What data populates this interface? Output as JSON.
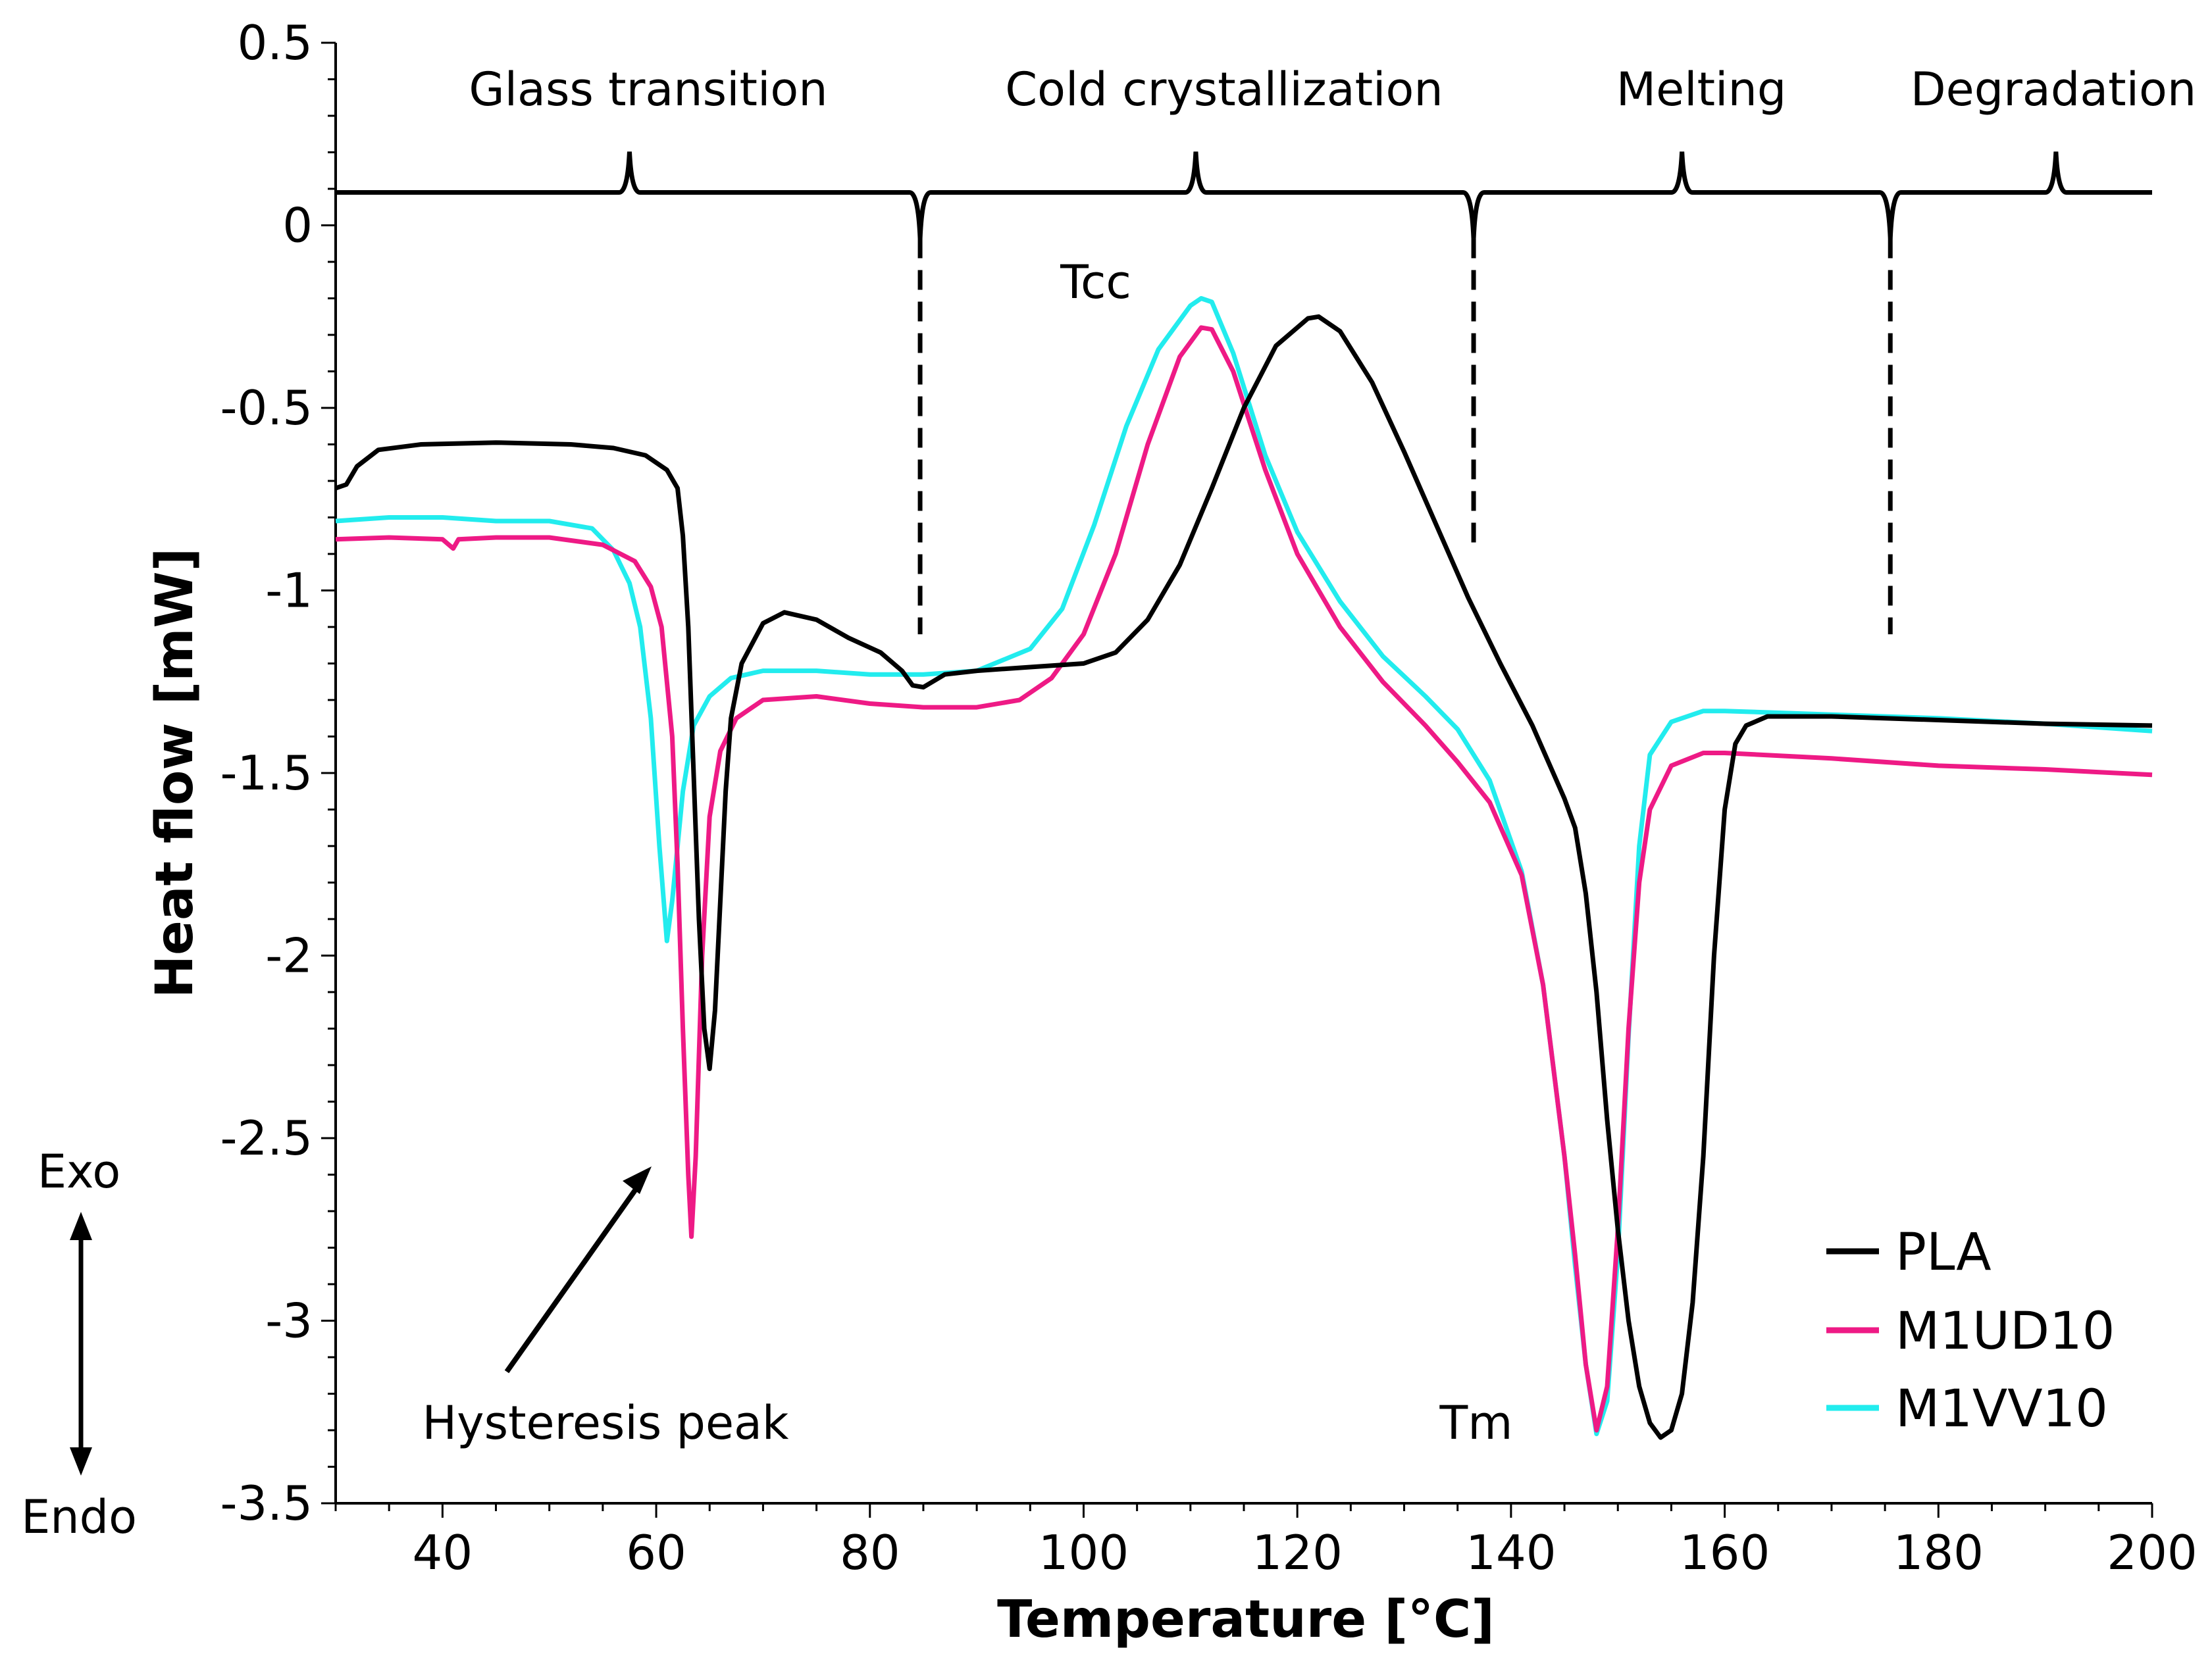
{
  "chart_data": {
    "type": "line",
    "title": "",
    "xlabel": "Temperature [°C]",
    "ylabel": "Heat flow [mW]",
    "xlim": [
      30,
      200
    ],
    "ylim": [
      -3.5,
      0.5
    ],
    "xticks": [
      "40",
      "60",
      "80",
      "100",
      "120",
      "140",
      "160",
      "180",
      "200"
    ],
    "yticks": [
      "0.5",
      "0",
      "-0.5",
      "-1",
      "-1.5",
      "-2",
      "-2.5",
      "-3",
      "-3.5"
    ],
    "legend_position": "bottom-right",
    "series": [
      {
        "name": "PLA",
        "color": "#000000",
        "points": [
          [
            30,
            -0.72
          ],
          [
            31,
            -0.71
          ],
          [
            32,
            -0.66
          ],
          [
            34,
            -0.615
          ],
          [
            38,
            -0.6
          ],
          [
            45,
            -0.595
          ],
          [
            52,
            -0.6
          ],
          [
            56,
            -0.61
          ],
          [
            59,
            -0.63
          ],
          [
            61,
            -0.67
          ],
          [
            62,
            -0.72
          ],
          [
            62.5,
            -0.85
          ],
          [
            63,
            -1.1
          ],
          [
            63.5,
            -1.5
          ],
          [
            64,
            -1.9
          ],
          [
            64.5,
            -2.2
          ],
          [
            65,
            -2.31
          ],
          [
            65.5,
            -2.15
          ],
          [
            66,
            -1.85
          ],
          [
            66.5,
            -1.55
          ],
          [
            67,
            -1.35
          ],
          [
            68,
            -1.2
          ],
          [
            70,
            -1.09
          ],
          [
            72,
            -1.06
          ],
          [
            75,
            -1.08
          ],
          [
            78,
            -1.13
          ],
          [
            81,
            -1.17
          ],
          [
            83,
            -1.22
          ],
          [
            84,
            -1.26
          ],
          [
            85,
            -1.265
          ],
          [
            87,
            -1.23
          ],
          [
            90,
            -1.22
          ],
          [
            95,
            -1.21
          ],
          [
            100,
            -1.2
          ],
          [
            103,
            -1.17
          ],
          [
            106,
            -1.08
          ],
          [
            109,
            -0.93
          ],
          [
            112,
            -0.72
          ],
          [
            115,
            -0.5
          ],
          [
            118,
            -0.33
          ],
          [
            121,
            -0.255
          ],
          [
            122,
            -0.25
          ],
          [
            124,
            -0.29
          ],
          [
            127,
            -0.43
          ],
          [
            130,
            -0.62
          ],
          [
            133,
            -0.82
          ],
          [
            136,
            -1.02
          ],
          [
            139,
            -1.2
          ],
          [
            142,
            -1.37
          ],
          [
            145,
            -1.57
          ],
          [
            146,
            -1.65
          ],
          [
            147,
            -1.83
          ],
          [
            148,
            -2.1
          ],
          [
            149,
            -2.45
          ],
          [
            150,
            -2.75
          ],
          [
            151,
            -3.0
          ],
          [
            152,
            -3.18
          ],
          [
            153,
            -3.28
          ],
          [
            154,
            -3.32
          ],
          [
            155,
            -3.3
          ],
          [
            156,
            -3.2
          ],
          [
            157,
            -2.95
          ],
          [
            158,
            -2.55
          ],
          [
            159,
            -2.0
          ],
          [
            160,
            -1.6
          ],
          [
            161,
            -1.42
          ],
          [
            162,
            -1.37
          ],
          [
            164,
            -1.345
          ],
          [
            170,
            -1.345
          ],
          [
            180,
            -1.355
          ],
          [
            190,
            -1.365
          ],
          [
            200,
            -1.37
          ]
        ]
      },
      {
        "name": "M1UD10",
        "color": "#ee1a85",
        "points": [
          [
            30,
            -0.86
          ],
          [
            35,
            -0.855
          ],
          [
            40,
            -0.86
          ],
          [
            41,
            -0.885
          ],
          [
            41.5,
            -0.86
          ],
          [
            45,
            -0.855
          ],
          [
            50,
            -0.855
          ],
          [
            55,
            -0.875
          ],
          [
            58,
            -0.92
          ],
          [
            59.5,
            -0.99
          ],
          [
            60.5,
            -1.1
          ],
          [
            61.5,
            -1.4
          ],
          [
            62,
            -1.75
          ],
          [
            62.5,
            -2.2
          ],
          [
            63,
            -2.6
          ],
          [
            63.3,
            -2.77
          ],
          [
            63.7,
            -2.55
          ],
          [
            64.3,
            -2.0
          ],
          [
            65,
            -1.62
          ],
          [
            66,
            -1.44
          ],
          [
            67.5,
            -1.35
          ],
          [
            70,
            -1.3
          ],
          [
            75,
            -1.29
          ],
          [
            80,
            -1.31
          ],
          [
            85,
            -1.32
          ],
          [
            90,
            -1.32
          ],
          [
            94,
            -1.3
          ],
          [
            97,
            -1.24
          ],
          [
            100,
            -1.12
          ],
          [
            103,
            -0.9
          ],
          [
            106,
            -0.6
          ],
          [
            109,
            -0.36
          ],
          [
            111,
            -0.28
          ],
          [
            112,
            -0.285
          ],
          [
            114,
            -0.4
          ],
          [
            117,
            -0.67
          ],
          [
            120,
            -0.9
          ],
          [
            124,
            -1.1
          ],
          [
            128,
            -1.25
          ],
          [
            132,
            -1.37
          ],
          [
            135,
            -1.47
          ],
          [
            138,
            -1.58
          ],
          [
            141,
            -1.78
          ],
          [
            143,
            -2.08
          ],
          [
            145,
            -2.55
          ],
          [
            146,
            -2.82
          ],
          [
            147,
            -3.12
          ],
          [
            148,
            -3.3
          ],
          [
            149,
            -3.18
          ],
          [
            150,
            -2.75
          ],
          [
            151,
            -2.2
          ],
          [
            152,
            -1.8
          ],
          [
            153,
            -1.6
          ],
          [
            155,
            -1.48
          ],
          [
            158,
            -1.445
          ],
          [
            160,
            -1.445
          ],
          [
            170,
            -1.46
          ],
          [
            180,
            -1.48
          ],
          [
            190,
            -1.49
          ],
          [
            200,
            -1.505
          ]
        ]
      },
      {
        "name": "M1VV10",
        "color": "#22ecee",
        "points": [
          [
            30,
            -0.81
          ],
          [
            35,
            -0.8
          ],
          [
            40,
            -0.8
          ],
          [
            45,
            -0.81
          ],
          [
            50,
            -0.81
          ],
          [
            54,
            -0.83
          ],
          [
            56,
            -0.89
          ],
          [
            57.5,
            -0.98
          ],
          [
            58.5,
            -1.1
          ],
          [
            59.5,
            -1.35
          ],
          [
            60.3,
            -1.7
          ],
          [
            61,
            -1.96
          ],
          [
            61.5,
            -1.85
          ],
          [
            62.5,
            -1.55
          ],
          [
            63.5,
            -1.37
          ],
          [
            65,
            -1.29
          ],
          [
            67,
            -1.24
          ],
          [
            70,
            -1.22
          ],
          [
            75,
            -1.22
          ],
          [
            80,
            -1.23
          ],
          [
            85,
            -1.23
          ],
          [
            90,
            -1.22
          ],
          [
            95,
            -1.16
          ],
          [
            98,
            -1.05
          ],
          [
            101,
            -0.82
          ],
          [
            104,
            -0.55
          ],
          [
            107,
            -0.34
          ],
          [
            110,
            -0.22
          ],
          [
            111,
            -0.2
          ],
          [
            112,
            -0.21
          ],
          [
            114,
            -0.35
          ],
          [
            117,
            -0.63
          ],
          [
            120,
            -0.84
          ],
          [
            124,
            -1.03
          ],
          [
            128,
            -1.18
          ],
          [
            132,
            -1.29
          ],
          [
            135,
            -1.38
          ],
          [
            138,
            -1.52
          ],
          [
            141,
            -1.77
          ],
          [
            143,
            -2.08
          ],
          [
            145,
            -2.55
          ],
          [
            146,
            -2.85
          ],
          [
            147,
            -3.12
          ],
          [
            148,
            -3.31
          ],
          [
            149,
            -3.22
          ],
          [
            150,
            -2.82
          ],
          [
            151,
            -2.22
          ],
          [
            152,
            -1.7
          ],
          [
            153,
            -1.45
          ],
          [
            155,
            -1.36
          ],
          [
            158,
            -1.33
          ],
          [
            160,
            -1.33
          ],
          [
            170,
            -1.34
          ],
          [
            180,
            -1.35
          ],
          [
            190,
            -1.365
          ],
          [
            200,
            -1.385
          ]
        ]
      }
    ],
    "annotations": {
      "stages": [
        "Glass transition",
        "Cold crystallization",
        "Melting",
        "Degradation"
      ],
      "tcc": "Tcc",
      "tm": "Tm",
      "hysteresis": "Hysteresis peak",
      "exo": "Exo",
      "endo": "Endo"
    },
    "guide_line": {
      "y": 0.09,
      "up_peaks_x": [
        57.5,
        110.5,
        156,
        191
      ],
      "down_dips_x": [
        84.7,
        136.5,
        175.5
      ],
      "dashed_to_y": [
        -1.12,
        -0.88,
        -1.12
      ]
    }
  }
}
